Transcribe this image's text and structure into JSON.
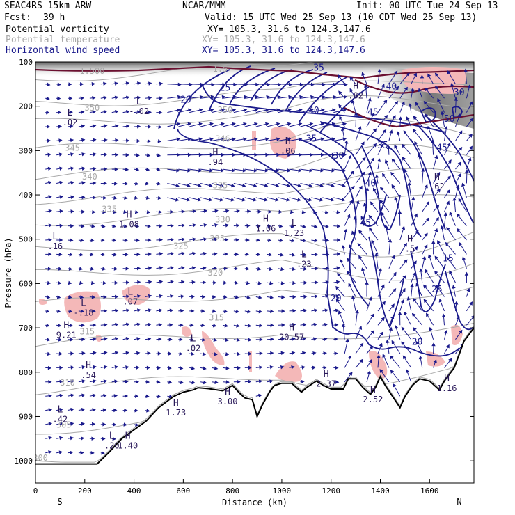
{
  "header": {
    "model": "SEAC4RS 15km ARW",
    "center": "NCAR/MMM",
    "init": "Init: 00 UTC Tue 24 Sep 13",
    "fcst_label": "Fcst:",
    "fcst_value": "39 h",
    "valid": "Valid: 15 UTC Wed 25 Sep 13 (10 CDT Wed 25 Sep 13)",
    "fields": [
      {
        "name": "Potential vorticity",
        "xy": "XY= 105.3, 31.6 to 124.3,147.6",
        "color": "#000000"
      },
      {
        "name": "Potential temperature",
        "xy": "XY= 105.3, 31.6 to 124.3,147.6",
        "color": "#a8a8a8"
      },
      {
        "name": "Horizontal wind speed",
        "xy": "XY= 105.3, 31.6 to 124.3,147.6",
        "color": "#1a1a8c"
      }
    ]
  },
  "chart_data": {
    "type": "contour",
    "xlabel": "Distance (km)",
    "ylabel": "Pressure (hPa)",
    "xlim": [
      0,
      1780
    ],
    "ylim": [
      1050,
      100
    ],
    "x_ticks": [
      0,
      200,
      400,
      600,
      800,
      1000,
      1200,
      1400,
      1600
    ],
    "y_ticks": [
      100,
      200,
      300,
      400,
      500,
      600,
      700,
      800,
      900,
      1000
    ],
    "x_end_labels": {
      "left": "S",
      "right": "N"
    },
    "terrain": [
      [
        0,
        1007
      ],
      [
        50,
        1007
      ],
      [
        250,
        1007
      ],
      [
        300,
        980
      ],
      [
        350,
        950
      ],
      [
        400,
        930
      ],
      [
        450,
        910
      ],
      [
        500,
        880
      ],
      [
        560,
        855
      ],
      [
        600,
        845
      ],
      [
        640,
        840
      ],
      [
        660,
        835
      ],
      [
        700,
        837
      ],
      [
        760,
        842
      ],
      [
        800,
        830
      ],
      [
        830,
        848
      ],
      [
        850,
        858
      ],
      [
        880,
        862
      ],
      [
        900,
        900
      ],
      [
        920,
        875
      ],
      [
        950,
        845
      ],
      [
        970,
        830
      ],
      [
        1000,
        825
      ],
      [
        1040,
        825
      ],
      [
        1060,
        835
      ],
      [
        1080,
        845
      ],
      [
        1100,
        835
      ],
      [
        1140,
        820
      ],
      [
        1170,
        830
      ],
      [
        1200,
        838
      ],
      [
        1250,
        838
      ],
      [
        1270,
        815
      ],
      [
        1300,
        815
      ],
      [
        1330,
        835
      ],
      [
        1360,
        850
      ],
      [
        1380,
        835
      ],
      [
        1400,
        810
      ],
      [
        1420,
        830
      ],
      [
        1450,
        855
      ],
      [
        1480,
        880
      ],
      [
        1500,
        855
      ],
      [
        1530,
        830
      ],
      [
        1560,
        815
      ],
      [
        1600,
        820
      ],
      [
        1640,
        840
      ],
      [
        1660,
        820
      ],
      [
        1700,
        790
      ],
      [
        1720,
        760
      ],
      [
        1740,
        730
      ],
      [
        1780,
        700
      ]
    ],
    "theta_labels": [
      {
        "text": "300",
        "x": 20,
        "p": 1000
      },
      {
        "text": "305",
        "x": 115,
        "p": 925
      },
      {
        "text": "310",
        "x": 130,
        "p": 830
      },
      {
        "text": "315",
        "x": 210,
        "p": 715
      },
      {
        "text": "315",
        "x": 735,
        "p": 683
      },
      {
        "text": "320",
        "x": 730,
        "p": 582
      },
      {
        "text": "325",
        "x": 590,
        "p": 522
      },
      {
        "text": "325",
        "x": 738,
        "p": 505
      },
      {
        "text": "330",
        "x": 760,
        "p": 462
      },
      {
        "text": "335",
        "x": 300,
        "p": 438
      },
      {
        "text": "335",
        "x": 750,
        "p": 385
      },
      {
        "text": "340",
        "x": 220,
        "p": 365
      },
      {
        "text": "345",
        "x": 150,
        "p": 300
      },
      {
        "text": "346",
        "x": 760,
        "p": 280
      },
      {
        "text": "350",
        "x": 230,
        "p": 210
      },
      {
        "text": "350",
        "x": 770,
        "p": 215
      },
      {
        "text": "1.500",
        "x": 230,
        "p": 127
      },
      {
        "text": "1.5",
        "x": 750,
        "p": 122
      }
    ],
    "wind_labels": [
      {
        "text": "20",
        "x": 610,
        "p": 192
      },
      {
        "text": "25",
        "x": 770,
        "p": 165
      },
      {
        "text": "35",
        "x": 1150,
        "p": 120
      },
      {
        "text": "40",
        "x": 1130,
        "p": 216
      },
      {
        "text": "45",
        "x": 1370,
        "p": 220
      },
      {
        "text": "35",
        "x": 1120,
        "p": 280
      },
      {
        "text": "30",
        "x": 1230,
        "p": 318
      },
      {
        "text": "35",
        "x": 1410,
        "p": 295
      },
      {
        "text": "40",
        "x": 1360,
        "p": 380
      },
      {
        "text": "45",
        "x": 1340,
        "p": 470
      },
      {
        "text": "45",
        "x": 1650,
        "p": 300
      },
      {
        "text": "50",
        "x": 1680,
        "p": 235
      },
      {
        "text": "20",
        "x": 1220,
        "p": 640
      },
      {
        "text": "25",
        "x": 1630,
        "p": 620
      },
      {
        "text": "20",
        "x": 1550,
        "p": 738
      },
      {
        "text": "15",
        "x": 1675,
        "p": 550
      },
      {
        "text": "40",
        "x": 1445,
        "p": 162
      },
      {
        "text": "30",
        "x": 1720,
        "p": 175
      }
    ],
    "pv_extrema": [
      {
        "type": "L",
        "value": ".02",
        "x": 140,
        "p": 230
      },
      {
        "type": "L",
        "value": "-.02",
        "x": 420,
        "p": 205
      },
      {
        "type": "H",
        "value": ".94",
        "x": 730,
        "p": 320
      },
      {
        "type": "H",
        "value": "1.08",
        "x": 380,
        "p": 460
      },
      {
        "type": "L",
        "value": ".16",
        "x": 80,
        "p": 510
      },
      {
        "type": "H",
        "value": "1.06",
        "x": 935,
        "p": 470
      },
      {
        "type": "L",
        "value": "1.23",
        "x": 1050,
        "p": 480
      },
      {
        "type": "L",
        "value": ".23",
        "x": 1090,
        "p": 550
      },
      {
        "type": "L",
        "value": "-.18",
        "x": 195,
        "p": 660
      },
      {
        "type": "L",
        "value": ".07",
        "x": 385,
        "p": 635
      },
      {
        "type": "H",
        "value": "9.21",
        "x": 125,
        "p": 710
      },
      {
        "type": "H",
        "value": "20.57",
        "x": 1040,
        "p": 715
      },
      {
        "type": "L",
        "value": ".02",
        "x": 640,
        "p": 740
      },
      {
        "type": "H",
        "value": ".54",
        "x": 215,
        "p": 800
      },
      {
        "type": "H",
        "value": "2.37",
        "x": 1180,
        "p": 820
      },
      {
        "type": "H",
        "value": "2.52",
        "x": 1370,
        "p": 855
      },
      {
        "type": "H",
        "value": "1.16",
        "x": 1670,
        "p": 830
      },
      {
        "type": "H",
        "value": "3.00",
        "x": 780,
        "p": 860
      },
      {
        "type": "H",
        "value": "1.73",
        "x": 570,
        "p": 885
      },
      {
        "type": "L",
        "value": ".42",
        "x": 100,
        "p": 900
      },
      {
        "type": "L",
        "value": ".20",
        "x": 310,
        "p": 960
      },
      {
        "type": "H",
        "value": "1.40",
        "x": 375,
        "p": 960
      },
      {
        "type": "H",
        "value": ".82",
        "x": 1300,
        "p": 170
      },
      {
        "type": "H",
        "value": ".06",
        "x": 1025,
        "p": 295
      },
      {
        "type": "H",
        "value": ".62",
        "x": 1630,
        "p": 375
      },
      {
        "type": "H",
        "value": ".5",
        "x": 1520,
        "p": 515
      }
    ]
  }
}
